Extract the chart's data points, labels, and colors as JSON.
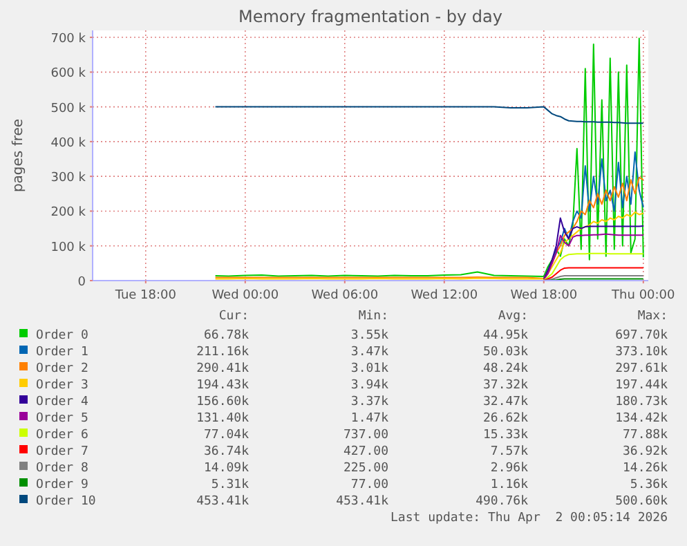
{
  "chart_data": {
    "type": "line",
    "title": "Memory fragmentation - by day",
    "ylabel": "pages free",
    "x": [
      "2026-03-31T22:12",
      "2026-03-31T23:00",
      "2026-04-01T00:00",
      "2026-04-01T01:00",
      "2026-04-01T02:00",
      "2026-04-01T03:00",
      "2026-04-01T04:00",
      "2026-04-01T05:00",
      "2026-04-01T06:00",
      "2026-04-01T07:00",
      "2026-04-01T08:00",
      "2026-04-01T09:00",
      "2026-04-01T10:00",
      "2026-04-01T11:00",
      "2026-04-01T12:00",
      "2026-04-01T13:00",
      "2026-04-01T14:00",
      "2026-04-01T15:00",
      "2026-04-01T16:00",
      "2026-04-01T17:00",
      "2026-04-01T18:00",
      "2026-04-01T18:15",
      "2026-04-01T18:30",
      "2026-04-01T18:45",
      "2026-04-01T19:00",
      "2026-04-01T19:15",
      "2026-04-01T19:30",
      "2026-04-01T19:45",
      "2026-04-01T20:00",
      "2026-04-01T20:15",
      "2026-04-01T20:30",
      "2026-04-01T20:45",
      "2026-04-01T21:00",
      "2026-04-01T21:15",
      "2026-04-01T21:30",
      "2026-04-01T21:45",
      "2026-04-01T22:00",
      "2026-04-01T22:15",
      "2026-04-01T22:30",
      "2026-04-01T22:45",
      "2026-04-01T23:00",
      "2026-04-01T23:15",
      "2026-04-01T23:30",
      "2026-04-01T23:45",
      "2026-04-02T00:00"
    ],
    "xlim": [
      "2026-03-31T14:48",
      "2026-04-02T00:18"
    ],
    "xticks": [
      {
        "value": "2026-03-31T18:00",
        "label": "Tue 18:00"
      },
      {
        "value": "2026-04-01T00:00",
        "label": "Wed 00:00"
      },
      {
        "value": "2026-04-01T06:00",
        "label": "Wed 06:00"
      },
      {
        "value": "2026-04-01T12:00",
        "label": "Wed 12:00"
      },
      {
        "value": "2026-04-01T18:00",
        "label": "Wed 18:00"
      },
      {
        "value": "2026-04-02T00:00",
        "label": "Thu 00:00"
      }
    ],
    "ylim": [
      0,
      720000
    ],
    "yticks": [
      0,
      {
        "value": 100000,
        "label": "100 k"
      },
      {
        "value": 200000,
        "label": "200 k"
      },
      {
        "value": 300000,
        "label": "300 k"
      },
      {
        "value": 400000,
        "label": "400 k"
      },
      {
        "value": 500000,
        "label": "500 k"
      },
      {
        "value": 600000,
        "label": "600 k"
      },
      {
        "value": 700000,
        "label": "700 k"
      }
    ],
    "grid": true,
    "legend": "bottom",
    "line_style": "solid",
    "series": [
      {
        "name": "Order 0",
        "color": "#00cc00",
        "values": [
          14000,
          13000,
          15000,
          16000,
          13000,
          14000,
          15000,
          13000,
          15000,
          14000,
          13000,
          15000,
          14000,
          14000,
          16000,
          17000,
          25000,
          15000,
          14000,
          13000,
          12000,
          40000,
          60000,
          90000,
          70000,
          120000,
          100000,
          160000,
          380000,
          90000,
          610000,
          60000,
          680000,
          120000,
          520000,
          70000,
          640000,
          90000,
          600000,
          100000,
          620000,
          80000,
          120000,
          697000,
          67000
        ]
      },
      {
        "name": "Order 1",
        "color": "#0066b3",
        "values": [
          null,
          null,
          null,
          null,
          null,
          null,
          null,
          null,
          null,
          null,
          null,
          null,
          null,
          null,
          null,
          null,
          null,
          null,
          null,
          null,
          8000,
          30000,
          50000,
          90000,
          110000,
          150000,
          120000,
          170000,
          200000,
          180000,
          330000,
          200000,
          300000,
          220000,
          350000,
          230000,
          260000,
          200000,
          340000,
          210000,
          300000,
          220000,
          370000,
          260000,
          211000
        ]
      },
      {
        "name": "Order 2",
        "color": "#ff8000",
        "values": [
          9000,
          9000,
          9000,
          9000,
          9000,
          9000,
          9000,
          9000,
          9000,
          9000,
          9000,
          9000,
          9000,
          9000,
          9000,
          9000,
          10000,
          9000,
          9000,
          9000,
          6000,
          30000,
          50000,
          80000,
          100000,
          130000,
          140000,
          150000,
          170000,
          200000,
          190000,
          230000,
          210000,
          250000,
          220000,
          260000,
          230000,
          270000,
          240000,
          280000,
          230000,
          290000,
          250000,
          297000,
          290000
        ]
      },
      {
        "name": "Order 3",
        "color": "#ffcc00",
        "values": [
          5000,
          5000,
          6000,
          5000,
          5000,
          5000,
          6000,
          5000,
          5000,
          5000,
          6000,
          5000,
          5000,
          5000,
          6000,
          5000,
          7000,
          6000,
          5000,
          5000,
          5000,
          20000,
          40000,
          60000,
          80000,
          110000,
          120000,
          130000,
          140000,
          150000,
          155000,
          160000,
          170000,
          165000,
          175000,
          170000,
          180000,
          175000,
          185000,
          180000,
          190000,
          185000,
          197000,
          190000,
          194000
        ]
      },
      {
        "name": "Order 4",
        "color": "#330099",
        "values": [
          null,
          null,
          null,
          null,
          null,
          null,
          null,
          null,
          null,
          null,
          null,
          null,
          null,
          null,
          null,
          null,
          null,
          null,
          null,
          null,
          4000,
          30000,
          60000,
          100000,
          180000,
          140000,
          120000,
          150000,
          155000,
          150000,
          155000,
          156000,
          156000,
          156000,
          156000,
          156000,
          156000,
          156000,
          156000,
          156000,
          156000,
          156000,
          156000,
          156000,
          157000
        ]
      },
      {
        "name": "Order 5",
        "color": "#990099",
        "values": [
          null,
          null,
          null,
          null,
          null,
          null,
          null,
          null,
          null,
          null,
          null,
          null,
          null,
          null,
          null,
          null,
          null,
          null,
          null,
          null,
          3000,
          20000,
          50000,
          80000,
          130000,
          110000,
          100000,
          125000,
          130000,
          130000,
          131000,
          131000,
          132000,
          132000,
          133000,
          134000,
          133000,
          132000,
          131000,
          131000,
          131000,
          131000,
          131000,
          131000,
          131000
        ]
      },
      {
        "name": "Order 6",
        "color": "#ccff00",
        "values": [
          null,
          null,
          null,
          null,
          null,
          null,
          null,
          null,
          null,
          null,
          null,
          null,
          null,
          null,
          null,
          null,
          null,
          null,
          null,
          null,
          1000,
          10000,
          20000,
          40000,
          60000,
          70000,
          75000,
          76000,
          77000,
          77000,
          77000,
          78000,
          78000,
          78000,
          78000,
          78000,
          77000,
          77000,
          77000,
          77000,
          77000,
          77000,
          77000,
          77000,
          77000
        ]
      },
      {
        "name": "Order 7",
        "color": "#ff0000",
        "values": [
          null,
          null,
          null,
          null,
          null,
          null,
          null,
          null,
          null,
          null,
          null,
          null,
          null,
          null,
          null,
          null,
          null,
          null,
          null,
          null,
          0,
          5000,
          10000,
          20000,
          30000,
          36000,
          37000,
          37000,
          37000,
          37000,
          37000,
          37000,
          37000,
          37000,
          37000,
          37000,
          37000,
          37000,
          37000,
          37000,
          37000,
          37000,
          37000,
          37000,
          37000
        ]
      },
      {
        "name": "Order 8",
        "color": "#808080",
        "values": [
          null,
          null,
          null,
          null,
          null,
          null,
          null,
          null,
          null,
          null,
          null,
          null,
          null,
          null,
          null,
          null,
          null,
          null,
          null,
          null,
          0,
          2000,
          4000,
          8000,
          12000,
          14000,
          14000,
          14000,
          14000,
          14000,
          14000,
          14000,
          14000,
          14000,
          14000,
          14000,
          14000,
          14000,
          14000,
          14000,
          14000,
          14000,
          14000,
          14000,
          14000
        ]
      },
      {
        "name": "Order 9",
        "color": "#008f00",
        "values": [
          null,
          null,
          null,
          null,
          null,
          null,
          null,
          null,
          null,
          null,
          null,
          null,
          null,
          null,
          null,
          null,
          null,
          null,
          null,
          null,
          null,
          0,
          1000,
          2000,
          4000,
          5000,
          5000,
          5000,
          5000,
          5000,
          5000,
          5000,
          5000,
          5000,
          5000,
          5000,
          5000,
          5000,
          5000,
          5000,
          5000,
          5000,
          5000,
          5000,
          5000
        ]
      },
      {
        "name": "Order 10",
        "color": "#00487d",
        "values": [
          500000,
          500000,
          500000,
          500000,
          500000,
          500000,
          500000,
          500000,
          500000,
          500000,
          500000,
          500000,
          500000,
          500000,
          500000,
          500000,
          500000,
          500000,
          497000,
          497000,
          500000,
          490000,
          480000,
          475000,
          472000,
          465000,
          460000,
          459000,
          458000,
          458000,
          457000,
          457000,
          457000,
          456000,
          456000,
          456000,
          456000,
          455000,
          455000,
          454000,
          453000,
          453000,
          453000,
          453000,
          453000
        ]
      }
    ],
    "annotations": [
      "Cur:",
      "Min:",
      "Avg:",
      "Max:",
      "66.78k",
      "3.55k",
      "44.95k",
      "697.70k",
      "211.16k",
      "3.47k",
      "50.03k",
      "373.10k",
      "290.41k",
      "3.01k",
      "48.24k",
      "297.61k",
      "194.43k",
      "3.94k",
      "37.32k",
      "197.44k",
      "156.60k",
      "3.37k",
      "32.47k",
      "180.73k",
      "131.40k",
      "1.47k",
      "26.62k",
      "134.42k",
      "77.04k",
      "737.00",
      "15.33k",
      "77.88k",
      "36.74k",
      "427.00",
      "7.57k",
      "36.92k",
      "14.09k",
      "225.00",
      "2.96k",
      "14.26k",
      "5.31k",
      "77.00",
      "1.16k",
      "5.36k",
      "453.41k",
      "453.41k",
      "490.76k",
      "500.60k",
      "Last update: Thu Apr  2 00:05:14 2026"
    ]
  }
}
